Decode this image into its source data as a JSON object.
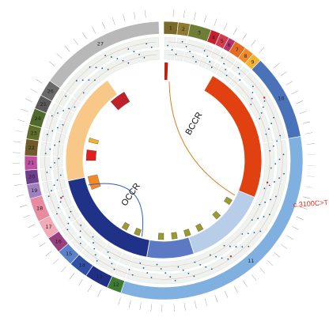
{
  "colors": {
    "outer_track": "#a8c9e8",
    "track_band": "#eef3f0",
    "dot": "#1f5a8a",
    "red_dot": "#d22222"
  },
  "exons": [
    {
      "label": "1",
      "start": 0,
      "end": 6,
      "color": "#7a6a2a"
    },
    {
      "label": "2",
      "start": 6,
      "end": 11,
      "color": "#8e7a33"
    },
    {
      "label": "3",
      "start": 11,
      "end": 20,
      "color": "#6f7d35"
    },
    {
      "label": "4",
      "start": 20,
      "end": 24,
      "color": "#c41f2f"
    },
    {
      "label": "5",
      "start": 24,
      "end": 28,
      "color": "#d33a4b"
    },
    {
      "label": "6",
      "start": 28,
      "end": 31,
      "color": "#b8326e"
    },
    {
      "label": "7",
      "start": 31,
      "end": 36,
      "color": "#e46c1f"
    },
    {
      "label": "8",
      "start": 36,
      "end": 40,
      "color": "#f28a2a"
    },
    {
      "label": "9",
      "start": 40,
      "end": 44,
      "color": "#f3b52e"
    },
    {
      "label": "10",
      "start": 44,
      "end": 80,
      "color": "#4a72b8"
    },
    {
      "label": "11",
      "start": 80,
      "end": 198,
      "color": "#7fb0e0"
    },
    {
      "label": "12",
      "start": 198,
      "end": 204,
      "color": "#3f7a33"
    },
    {
      "label": "13",
      "start": 204,
      "end": 214,
      "color": "#1f2f88"
    },
    {
      "label": "14",
      "start": 214,
      "end": 222,
      "color": "#3050a6"
    },
    {
      "label": "15",
      "start": 222,
      "end": 229,
      "color": "#5a82c8"
    },
    {
      "label": "16",
      "start": 229,
      "end": 236,
      "color": "#9a3f80"
    },
    {
      "label": "17",
      "start": 236,
      "end": 244,
      "color": "#f2a9b8"
    },
    {
      "label": "18",
      "start": 244,
      "end": 254,
      "color": "#e88aa0"
    },
    {
      "label": "19",
      "start": 254,
      "end": 260,
      "color": "#a080c0"
    },
    {
      "label": "20",
      "start": 260,
      "end": 266,
      "color": "#6e3f8f"
    },
    {
      "label": "21",
      "start": 266,
      "end": 272,
      "color": "#c050a0"
    },
    {
      "label": "22",
      "start": 272,
      "end": 279,
      "color": "#6e5a2a"
    },
    {
      "label": "23",
      "start": 279,
      "end": 285,
      "color": "#5f6e2a"
    },
    {
      "label": "24",
      "start": 285,
      "end": 292,
      "color": "#4f6a2a"
    },
    {
      "label": "25",
      "start": 292,
      "end": 298,
      "color": "#5a5a5a"
    },
    {
      "label": "26",
      "start": 298,
      "end": 305,
      "color": "#6a6a6a"
    },
    {
      "label": "27",
      "start": 305,
      "end": 358,
      "color": "#b8b8b8"
    }
  ],
  "inner_arcs": [
    {
      "name": "bccr-band",
      "start": 30,
      "end": 112,
      "color": "#e14010"
    },
    {
      "name": "bccr-light",
      "start": 112,
      "end": 162,
      "color": "#b8cde8"
    },
    {
      "name": "occr-mid",
      "start": 162,
      "end": 190,
      "color": "#5c7ac4"
    },
    {
      "name": "occr-dark",
      "start": 190,
      "end": 258,
      "color": "#1f3288"
    },
    {
      "name": "left-tan",
      "start": 258,
      "end": 325,
      "color": "#f8c888"
    }
  ],
  "regions": [
    {
      "label": "BCCR",
      "x": 248,
      "y": 155,
      "rotate": -60
    },
    {
      "label": "OCCR",
      "x": 168,
      "y": 245,
      "rotate": -55
    }
  ],
  "variant": {
    "label": "c.3100C>T"
  }
}
